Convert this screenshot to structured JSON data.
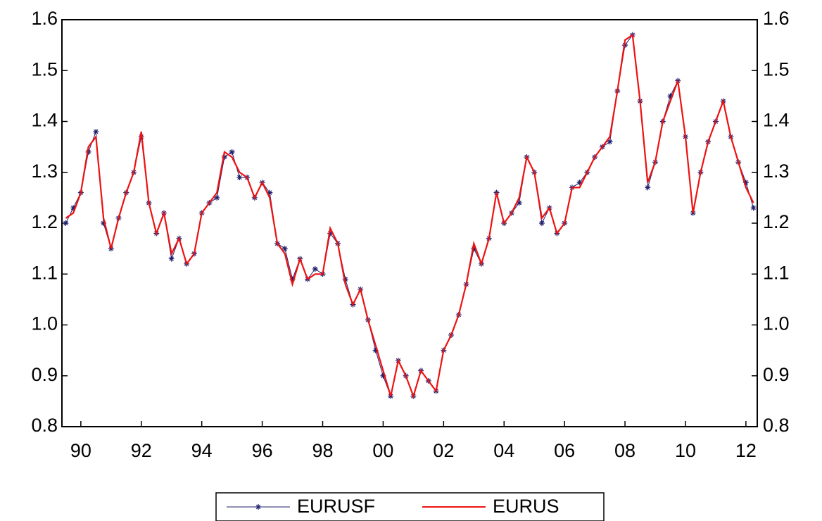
{
  "chart_data": {
    "type": "line",
    "categories": [
      null,
      null,
      "90",
      null,
      null,
      null,
      null,
      null,
      null,
      null,
      "92",
      null,
      null,
      null,
      null,
      null,
      null,
      null,
      "94",
      null,
      null,
      null,
      null,
      null,
      null,
      null,
      "96",
      null,
      null,
      null,
      null,
      null,
      null,
      null,
      "98",
      null,
      null,
      null,
      null,
      null,
      null,
      null,
      "00",
      null,
      null,
      null,
      null,
      null,
      null,
      null,
      "02",
      null,
      null,
      null,
      null,
      null,
      null,
      null,
      "04",
      null,
      null,
      null,
      null,
      null,
      null,
      null,
      "06",
      null,
      null,
      null,
      null,
      null,
      null,
      null,
      "08",
      null,
      null,
      null,
      null,
      null,
      null,
      null,
      "10",
      null,
      null,
      null,
      null,
      null,
      null,
      null,
      "12",
      null
    ],
    "series": [
      {
        "name": "EURUSF",
        "color": "#1f1f6e",
        "marker": "star",
        "values": [
          1.2,
          1.23,
          1.26,
          1.34,
          1.38,
          1.2,
          1.15,
          1.21,
          1.26,
          1.3,
          1.37,
          1.24,
          1.18,
          1.22,
          1.13,
          1.17,
          1.12,
          1.14,
          1.22,
          1.24,
          1.25,
          1.33,
          1.34,
          1.29,
          1.29,
          1.25,
          1.28,
          1.26,
          1.16,
          1.15,
          1.09,
          1.13,
          1.09,
          1.11,
          1.1,
          1.18,
          1.16,
          1.09,
          1.04,
          1.07,
          1.01,
          0.95,
          0.9,
          0.86,
          0.93,
          0.9,
          0.86,
          0.91,
          0.89,
          0.87,
          0.95,
          0.98,
          1.02,
          1.08,
          1.15,
          1.12,
          1.17,
          1.26,
          1.2,
          1.22,
          1.24,
          1.33,
          1.3,
          1.2,
          1.23,
          1.18,
          1.2,
          1.27,
          1.28,
          1.3,
          1.33,
          1.35,
          1.36,
          1.46,
          1.55,
          1.57,
          1.44,
          1.27,
          1.32,
          1.4,
          1.45,
          1.48,
          1.37,
          1.22,
          1.3,
          1.36,
          1.4,
          1.44,
          1.37,
          1.32,
          1.28,
          1.23
        ]
      },
      {
        "name": "EURUS",
        "color": "#ee1111",
        "marker": "none",
        "values": [
          1.21,
          1.22,
          1.26,
          1.35,
          1.37,
          1.21,
          1.15,
          1.21,
          1.26,
          1.3,
          1.38,
          1.24,
          1.18,
          1.22,
          1.14,
          1.17,
          1.12,
          1.14,
          1.22,
          1.24,
          1.26,
          1.34,
          1.33,
          1.3,
          1.29,
          1.25,
          1.28,
          1.25,
          1.16,
          1.14,
          1.08,
          1.13,
          1.09,
          1.1,
          1.1,
          1.19,
          1.16,
          1.08,
          1.04,
          1.07,
          1.01,
          0.96,
          0.91,
          0.86,
          0.93,
          0.9,
          0.86,
          0.91,
          0.89,
          0.87,
          0.95,
          0.98,
          1.02,
          1.08,
          1.16,
          1.12,
          1.17,
          1.26,
          1.2,
          1.22,
          1.25,
          1.33,
          1.3,
          1.21,
          1.23,
          1.18,
          1.2,
          1.27,
          1.27,
          1.3,
          1.33,
          1.35,
          1.37,
          1.46,
          1.56,
          1.57,
          1.44,
          1.28,
          1.32,
          1.4,
          1.44,
          1.48,
          1.37,
          1.22,
          1.3,
          1.36,
          1.4,
          1.44,
          1.37,
          1.32,
          1.27,
          1.24
        ]
      }
    ],
    "ylim": [
      0.8,
      1.6
    ],
    "yticks": [
      {
        "value": 0.8,
        "label": "0.8"
      },
      {
        "value": 0.9,
        "label": "0.9"
      },
      {
        "value": 1.0,
        "label": "1.0"
      },
      {
        "value": 1.1,
        "label": "1.1"
      },
      {
        "value": 1.2,
        "label": "1.2"
      },
      {
        "value": 1.3,
        "label": "1.3"
      },
      {
        "value": 1.4,
        "label": "1.4"
      },
      {
        "value": 1.5,
        "label": "1.5"
      },
      {
        "value": 1.6,
        "label": "1.6"
      }
    ],
    "y2lim": [
      0.8,
      1.6
    ],
    "y2ticks": [
      {
        "value": 0.8,
        "label": "0.8"
      },
      {
        "value": 0.9,
        "label": "0.9"
      },
      {
        "value": 1.0,
        "label": "1.0"
      },
      {
        "value": 1.1,
        "label": "1.1"
      },
      {
        "value": 1.2,
        "label": "1.2"
      },
      {
        "value": 1.3,
        "label": "1.3"
      },
      {
        "value": 1.4,
        "label": "1.4"
      },
      {
        "value": 1.5,
        "label": "1.5"
      },
      {
        "value": 1.6,
        "label": "1.6"
      }
    ],
    "legend": "bottom"
  }
}
